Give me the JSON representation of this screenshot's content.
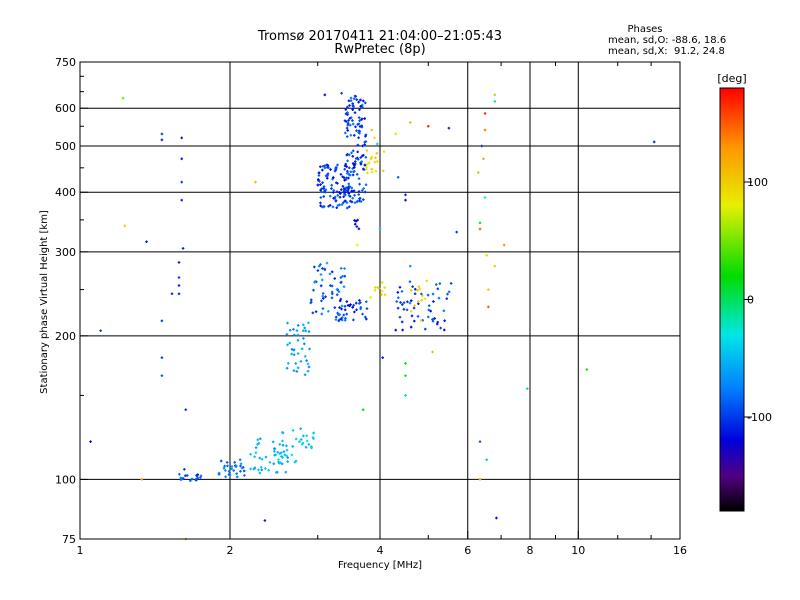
{
  "title": {
    "line1": "Tromsø 20170411 21:04:00–21:05:43",
    "line2": "RwPretec (8p)"
  },
  "stats": {
    "heading": "Phases",
    "line_o": "mean, sd,O: -88.6, 18.6",
    "line_x": "mean, sd,X:  91.2, 24.8"
  },
  "colorbar": {
    "unit": "[deg]",
    "ticks": [
      {
        "value": 100,
        "label": "100"
      },
      {
        "value": 0,
        "label": "0"
      },
      {
        "value": -100,
        "label": "-100"
      }
    ],
    "range": [
      -180,
      180
    ]
  },
  "chart_data": {
    "type": "scatter",
    "xlabel": "Frequency [MHz]",
    "ylabel": "Stationary phase Virtual Height [km]",
    "x_scale": "log",
    "y_scale": "log",
    "xlim": [
      1,
      16
    ],
    "ylim": [
      75,
      750
    ],
    "x_ticks": [
      {
        "value": 1,
        "label": "1"
      },
      {
        "value": 2,
        "label": "2"
      },
      {
        "value": 4,
        "label": "4"
      },
      {
        "value": 6,
        "label": "6"
      },
      {
        "value": 8,
        "label": "8"
      },
      {
        "value": 10,
        "label": "10"
      },
      {
        "value": 16,
        "label": "16"
      }
    ],
    "y_ticks": [
      {
        "value": 75,
        "label": "75"
      },
      {
        "value": 100,
        "label": "100"
      },
      {
        "value": 200,
        "label": "200"
      },
      {
        "value": 300,
        "label": "300"
      },
      {
        "value": 400,
        "label": "400"
      },
      {
        "value": 500,
        "label": "500"
      },
      {
        "value": 600,
        "label": "600"
      },
      {
        "value": 750,
        "label": "750"
      }
    ],
    "grid": true,
    "x_gridlines": [
      2,
      4,
      6,
      8,
      10
    ],
    "y_gridlines": [
      100,
      200,
      300,
      400,
      500,
      600
    ],
    "clusters": [
      {
        "x": [
          1.55,
          1.75
        ],
        "y": [
          99,
          103
        ],
        "phase": [
          -110,
          -70
        ],
        "count": 18
      },
      {
        "x": [
          1.9,
          2.15
        ],
        "y": [
          100,
          110
        ],
        "phase": [
          -100,
          -60
        ],
        "count": 30
      },
      {
        "x": [
          2.15,
          2.6
        ],
        "y": [
          103,
          122
        ],
        "phase": [
          -70,
          -40
        ],
        "count": 40
      },
      {
        "x": [
          2.5,
          2.95
        ],
        "y": [
          108,
          130
        ],
        "phase": [
          -60,
          -30
        ],
        "count": 35
      },
      {
        "x": [
          2.6,
          2.9
        ],
        "y": [
          165,
          215
        ],
        "phase": [
          -75,
          -45
        ],
        "count": 40
      },
      {
        "x": [
          2.9,
          3.4
        ],
        "y": [
          215,
          285
        ],
        "phase": [
          -120,
          -60
        ],
        "count": 60
      },
      {
        "x": [
          3.3,
          3.8
        ],
        "y": [
          215,
          240
        ],
        "phase": [
          -120,
          -80
        ],
        "count": 30
      },
      {
        "x": [
          4.3,
          5.6
        ],
        "y": [
          205,
          260
        ],
        "phase": [
          -120,
          -80
        ],
        "count": 55
      },
      {
        "x": [
          3.8,
          4.1
        ],
        "y": [
          240,
          260
        ],
        "phase": [
          70,
          110
        ],
        "count": 10
      },
      {
        "x": [
          4.6,
          5.0
        ],
        "y": [
          215,
          270
        ],
        "phase": [
          80,
          110
        ],
        "count": 12
      },
      {
        "x": [
          3.0,
          3.5
        ],
        "y": [
          370,
          460
        ],
        "phase": [
          -120,
          -80
        ],
        "count": 110
      },
      {
        "x": [
          3.4,
          3.75
        ],
        "y": [
          380,
          640
        ],
        "phase": [
          -120,
          -75
        ],
        "count": 140
      },
      {
        "x": [
          3.75,
          4.1
        ],
        "y": [
          430,
          490
        ],
        "phase": [
          80,
          110
        ],
        "count": 18
      },
      {
        "x": [
          3.5,
          3.65
        ],
        "y": [
          335,
          350
        ],
        "phase": [
          -130,
          -110
        ],
        "count": 6
      }
    ],
    "points": [
      {
        "x": 1.05,
        "y": 120,
        "phase": -120
      },
      {
        "x": 1.1,
        "y": 205,
        "phase": -100
      },
      {
        "x": 1.22,
        "y": 630,
        "phase": 50
      },
      {
        "x": 1.23,
        "y": 340,
        "phase": 100
      },
      {
        "x": 1.33,
        "y": 100,
        "phase": 130
      },
      {
        "x": 1.36,
        "y": 315,
        "phase": -110
      },
      {
        "x": 1.46,
        "y": 530,
        "phase": -100
      },
      {
        "x": 1.46,
        "y": 515,
        "phase": -110
      },
      {
        "x": 1.46,
        "y": 215,
        "phase": -100
      },
      {
        "x": 1.46,
        "y": 180,
        "phase": -100
      },
      {
        "x": 1.46,
        "y": 165,
        "phase": -90
      },
      {
        "x": 1.53,
        "y": 245,
        "phase": -110
      },
      {
        "x": 1.58,
        "y": 285,
        "phase": -110
      },
      {
        "x": 1.58,
        "y": 265,
        "phase": -100
      },
      {
        "x": 1.58,
        "y": 255,
        "phase": -110
      },
      {
        "x": 1.58,
        "y": 245,
        "phase": -110
      },
      {
        "x": 1.6,
        "y": 520,
        "phase": -110
      },
      {
        "x": 1.6,
        "y": 470,
        "phase": -110
      },
      {
        "x": 1.6,
        "y": 420,
        "phase": -100
      },
      {
        "x": 1.6,
        "y": 385,
        "phase": -110
      },
      {
        "x": 1.61,
        "y": 305,
        "phase": -110
      },
      {
        "x": 1.62,
        "y": 105,
        "phase": -100
      },
      {
        "x": 1.63,
        "y": 140,
        "phase": -100
      },
      {
        "x": 1.63,
        "y": 75,
        "phase": 130
      },
      {
        "x": 2.25,
        "y": 420,
        "phase": 110
      },
      {
        "x": 2.35,
        "y": 82,
        "phase": -110
      },
      {
        "x": 3.1,
        "y": 640,
        "phase": -120
      },
      {
        "x": 3.35,
        "y": 645,
        "phase": -100
      },
      {
        "x": 3.6,
        "y": 310,
        "phase": 80
      },
      {
        "x": 3.7,
        "y": 140,
        "phase": 20
      },
      {
        "x": 3.85,
        "y": 540,
        "phase": 110
      },
      {
        "x": 3.9,
        "y": 520,
        "phase": 90
      },
      {
        "x": 3.95,
        "y": 505,
        "phase": -40
      },
      {
        "x": 4.0,
        "y": 335,
        "phase": -60
      },
      {
        "x": 4.05,
        "y": 180,
        "phase": -110
      },
      {
        "x": 4.3,
        "y": 530,
        "phase": 90
      },
      {
        "x": 4.35,
        "y": 430,
        "phase": -90
      },
      {
        "x": 4.5,
        "y": 175,
        "phase": 20
      },
      {
        "x": 4.5,
        "y": 165,
        "phase": 10
      },
      {
        "x": 4.5,
        "y": 150,
        "phase": -40
      },
      {
        "x": 4.5,
        "y": 395,
        "phase": -110
      },
      {
        "x": 4.5,
        "y": 385,
        "phase": -120
      },
      {
        "x": 4.6,
        "y": 560,
        "phase": 110
      },
      {
        "x": 4.6,
        "y": 280,
        "phase": -70
      },
      {
        "x": 5.0,
        "y": 550,
        "phase": 170
      },
      {
        "x": 5.1,
        "y": 185,
        "phase": 110
      },
      {
        "x": 5.5,
        "y": 545,
        "phase": -110
      },
      {
        "x": 5.7,
        "y": 330,
        "phase": -100
      },
      {
        "x": 6.3,
        "y": 440,
        "phase": 60
      },
      {
        "x": 6.35,
        "y": 345,
        "phase": 10
      },
      {
        "x": 6.35,
        "y": 335,
        "phase": 150
      },
      {
        "x": 6.35,
        "y": 120,
        "phase": -90
      },
      {
        "x": 6.35,
        "y": 100,
        "phase": 120
      },
      {
        "x": 6.4,
        "y": 500,
        "phase": -110
      },
      {
        "x": 6.45,
        "y": 470,
        "phase": 120
      },
      {
        "x": 6.5,
        "y": 585,
        "phase": 170
      },
      {
        "x": 6.5,
        "y": 540,
        "phase": 140
      },
      {
        "x": 6.5,
        "y": 390,
        "phase": -30
      },
      {
        "x": 6.55,
        "y": 295,
        "phase": 90
      },
      {
        "x": 6.55,
        "y": 110,
        "phase": -10
      },
      {
        "x": 6.6,
        "y": 250,
        "phase": 100
      },
      {
        "x": 6.6,
        "y": 230,
        "phase": 150
      },
      {
        "x": 6.8,
        "y": 640,
        "phase": 60
      },
      {
        "x": 6.8,
        "y": 620,
        "phase": -20
      },
      {
        "x": 6.8,
        "y": 280,
        "phase": 100
      },
      {
        "x": 6.85,
        "y": 83,
        "phase": -120
      },
      {
        "x": 7.1,
        "y": 310,
        "phase": 130
      },
      {
        "x": 7.9,
        "y": 155,
        "phase": -10
      },
      {
        "x": 10.4,
        "y": 170,
        "phase": 30
      },
      {
        "x": 14.2,
        "y": 510,
        "phase": -110
      }
    ]
  }
}
